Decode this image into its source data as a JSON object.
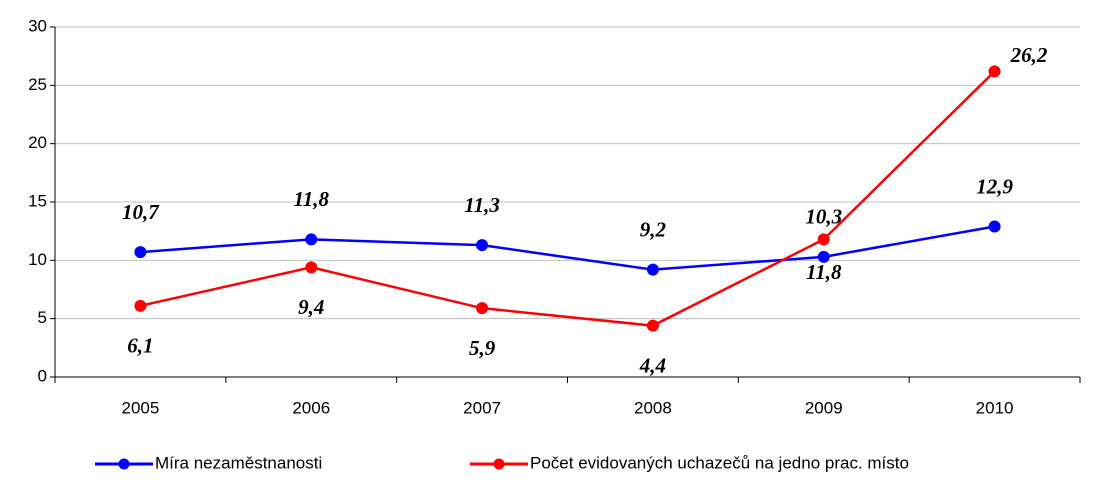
{
  "chart_data": {
    "type": "line",
    "categories": [
      "2005",
      "2006",
      "2007",
      "2008",
      "2009",
      "2010"
    ],
    "series": [
      {
        "name": "Míra nezaměstnanosti",
        "color": "#0000ff",
        "values": [
          10.7,
          11.8,
          11.3,
          9.2,
          10.3,
          12.9
        ],
        "value_labels": [
          "10,7",
          "11,8",
          "11,3",
          "9,2",
          "10,3",
          "12,9"
        ]
      },
      {
        "name": "Počet evidovaných uchazečů na jedno prac. místo",
        "color": "#ff0000",
        "values": [
          6.1,
          9.4,
          5.9,
          4.4,
          11.8,
          26.2
        ],
        "value_labels": [
          "6,1",
          "9,4",
          "5,9",
          "4,4",
          "11,8",
          "26,2"
        ]
      }
    ],
    "ylim": [
      0,
      30
    ],
    "yticks": [
      0,
      5,
      10,
      15,
      20,
      25,
      30
    ],
    "grid": true
  }
}
